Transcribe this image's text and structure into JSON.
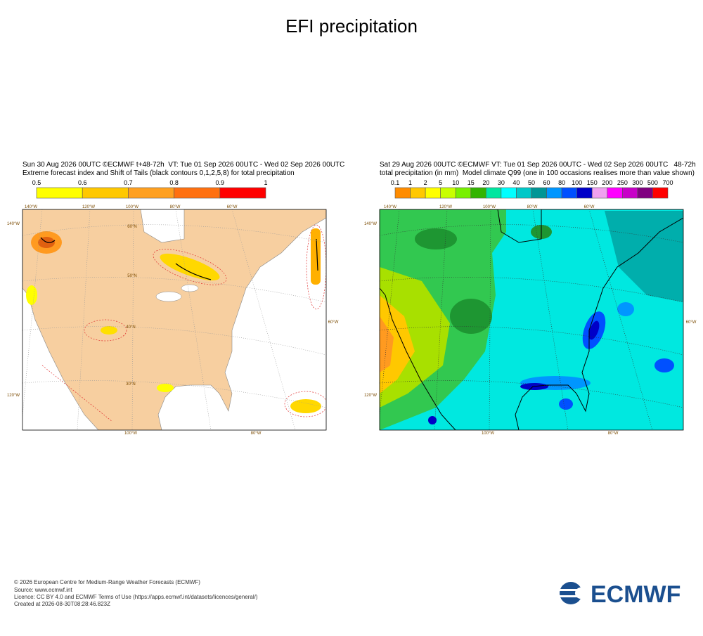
{
  "title": "EFI precipitation",
  "panels": [
    {
      "header": [
        "Sun 30 Aug 2026 00UTC ©ECMWF t+48-72h  VT: Tue 01 Sep 2026 00UTC - Wed 02 Sep 2026 00UTC",
        "Extreme forecast index and Shift of Tails (black contours 0,1,2,5,8) for total precipitation"
      ],
      "colorbar": {
        "labels": [
          0.5,
          0.6,
          0.7,
          0.8,
          0.9,
          1
        ],
        "colors": [
          "#ffff00",
          "#ffc800",
          "#ffa020",
          "#ff7010",
          "#ff0000"
        ]
      },
      "map_labels": {
        "top": [
          "140°W",
          "120°W",
          "100°W",
          "80°W",
          "60°W"
        ],
        "left": [
          "140°W",
          "120°W"
        ],
        "bottom": [
          "100°W",
          "80°W"
        ],
        "right": [
          "60°W"
        ],
        "lat": [
          "60°N",
          "50°N",
          "40°N",
          "30°N"
        ]
      }
    },
    {
      "header": [
        "Sat 29 Aug 2026 00UTC ©ECMWF VT: Tue 01 Sep 2026 00UTC - Wed 02 Sep 2026 00UTC   48-72h",
        "total precipitation (in mm)  Model climate Q99 (one in 100 occasions realises more than value shown)"
      ],
      "colorbar": {
        "labels": [
          0.1,
          1,
          2,
          5,
          10,
          15,
          20,
          30,
          40,
          50,
          60,
          80,
          100,
          150,
          200,
          250,
          300,
          500,
          700
        ],
        "colors": [
          "#ff8c00",
          "#ffc800",
          "#ffff00",
          "#c8ff00",
          "#78f000",
          "#32b400",
          "#00e6a0",
          "#00ffff",
          "#00c8c8",
          "#009696",
          "#0096ff",
          "#0050ff",
          "#0000c8",
          "#f0a0f0",
          "#ff00ff",
          "#c800c8",
          "#800080",
          "#ff0000"
        ]
      },
      "map_labels": {
        "top": [
          "140°W",
          "120°W",
          "100°W",
          "80°W",
          "60°W"
        ],
        "left": [
          "140°W",
          "120°W"
        ],
        "bottom": [
          "100°W",
          "80°W"
        ],
        "right": [
          "60°W"
        ]
      }
    }
  ],
  "footer": [
    "© 2026 European Centre for Medium-Range Weather Forecasts (ECMWF)",
    "Source: www.ecmwf.int",
    "Licence: CC BY 4.0 and ECMWF Terms of Use (https://apps.ecmwf.int/datasets/licences/general/)",
    "Created at 2026-08-30T08:28:46.823Z"
  ],
  "logo": "ECMWF"
}
